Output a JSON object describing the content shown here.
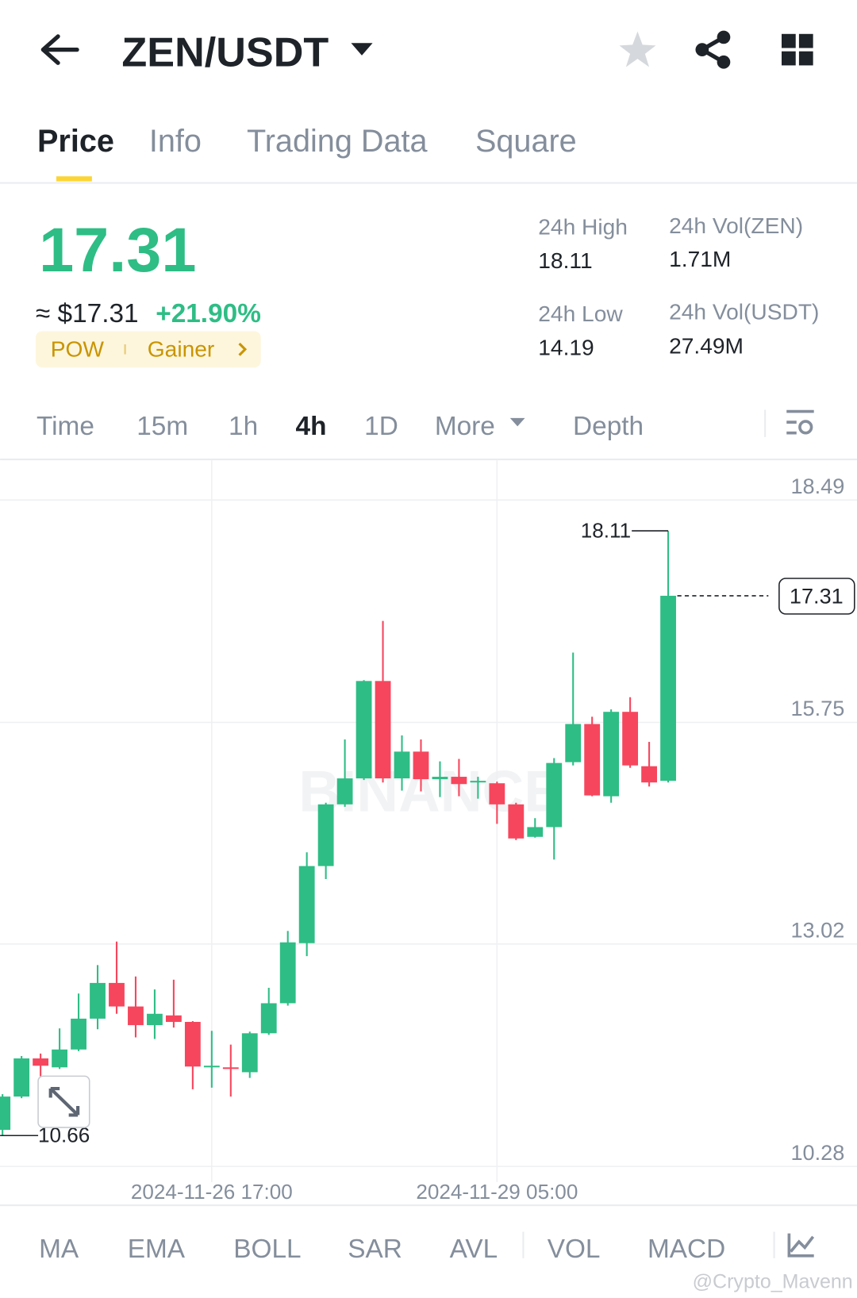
{
  "header": {
    "pair": "ZEN/USDT"
  },
  "tabs": [
    "Price",
    "Info",
    "Trading Data",
    "Square"
  ],
  "ticker": {
    "price": "17.31",
    "usd": "≈ $17.31",
    "change": "+21.90%",
    "tags": [
      "POW",
      "Gainer"
    ],
    "stats": [
      {
        "label": "24h High",
        "value": "18.11"
      },
      {
        "label": "24h Vol(ZEN)",
        "value": "1.71M"
      },
      {
        "label": "24h Low",
        "value": "14.19"
      },
      {
        "label": "24h Vol(USDT)",
        "value": "27.49M"
      }
    ]
  },
  "intervals": [
    "Time",
    "15m",
    "1h",
    "4h",
    "1D",
    "More",
    "Depth"
  ],
  "chart_data": {
    "type": "candlestick",
    "watermark": "BINANCE",
    "categories": [
      null,
      null,
      null,
      null,
      null,
      null,
      null,
      null,
      null,
      null,
      null,
      "2024-11-26 17:00",
      null,
      null,
      null,
      null,
      null,
      null,
      null,
      null,
      null,
      null,
      null,
      null,
      null,
      null,
      "2024-11-29 05:00",
      null,
      null,
      null,
      null,
      null,
      null,
      null,
      null,
      null
    ],
    "open": [
      10.73,
      11.14,
      11.61,
      11.5,
      11.72,
      12.1,
      12.54,
      12.25,
      12.02,
      12.14,
      12.06,
      11.5,
      11.5,
      11.44,
      11.92,
      12.29,
      13.03,
      13.98,
      14.74,
      15.06,
      16.26,
      15.06,
      15.39,
      15.05,
      15.08,
      15.01,
      15.0,
      14.74,
      14.34,
      14.46,
      15.26,
      15.73,
      14.84,
      15.88,
      15.21,
      15.03
    ],
    "high": [
      11.17,
      11.64,
      11.67,
      11.98,
      12.41,
      12.76,
      13.05,
      12.62,
      12.46,
      12.58,
      12.07,
      11.95,
      11.78,
      11.94,
      12.48,
      13.18,
      14.15,
      14.76,
      15.54,
      16.27,
      17.0,
      15.59,
      15.54,
      15.27,
      15.3,
      15.08,
      15.02,
      14.76,
      14.57,
      15.31,
      16.61,
      15.82,
      15.91,
      16.06,
      15.51,
      18.11
    ],
    "low": [
      10.66,
      11.12,
      11.39,
      11.48,
      11.7,
      11.97,
      12.16,
      11.87,
      11.85,
      11.99,
      11.23,
      11.25,
      11.14,
      11.37,
      11.9,
      12.26,
      12.87,
      13.82,
      14.71,
      15.04,
      15.01,
      14.91,
      14.9,
      14.83,
      14.84,
      14.81,
      14.5,
      14.3,
      14.33,
      14.06,
      15.22,
      14.84,
      14.76,
      15.19,
      14.96,
      15.01
    ],
    "close": [
      11.14,
      11.61,
      11.52,
      11.72,
      12.1,
      12.54,
      12.25,
      12.02,
      12.16,
      12.06,
      11.51,
      11.52,
      11.48,
      11.92,
      12.29,
      13.04,
      13.98,
      14.74,
      15.06,
      16.26,
      15.06,
      15.39,
      15.05,
      15.08,
      14.99,
      15.03,
      14.74,
      14.32,
      14.46,
      15.25,
      15.73,
      14.85,
      15.88,
      15.22,
      15.01,
      17.31
    ],
    "ylim": [
      10.28,
      18.49
    ],
    "yticks": [
      18.49,
      15.75,
      13.02,
      10.28
    ],
    "grid": true,
    "up_color": "#2ebd85",
    "down_color": "#f6465d"
  },
  "indicators": [
    "MA",
    "EMA",
    "BOLL",
    "SAR",
    "AVL",
    "VOL",
    "MACD"
  ],
  "watermark": "@Crypto_Mavenn"
}
